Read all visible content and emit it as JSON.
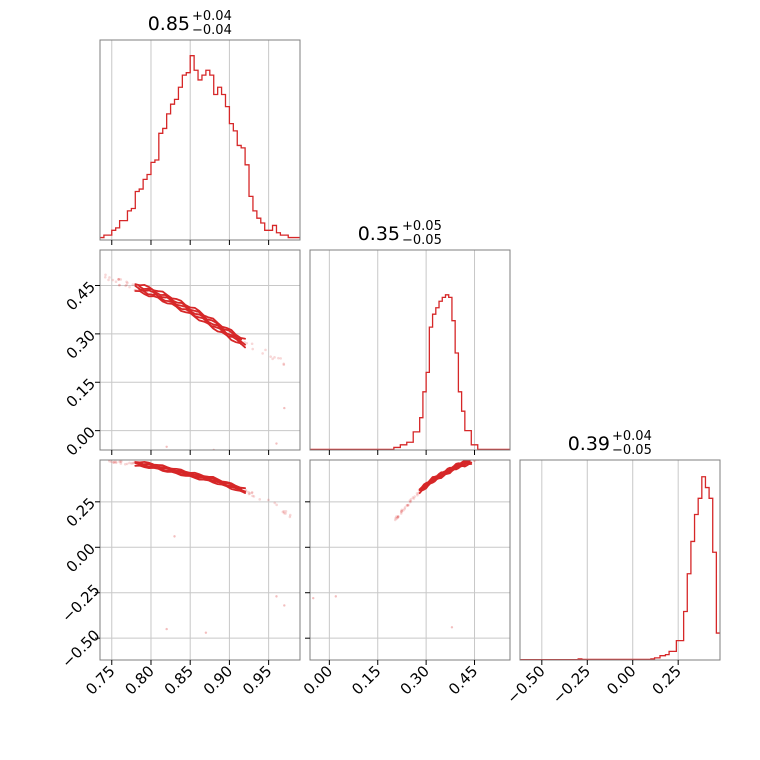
{
  "chart_data": {
    "type": "corner",
    "color": "#d62728",
    "parameters": [
      {
        "title_value": "0.85",
        "err_plus": "+0.04",
        "err_minus": "−0.04",
        "range": [
          0.735,
          0.99
        ],
        "ticks": [
          0.75,
          0.8,
          0.85,
          0.9,
          0.95
        ],
        "tick_labels": [
          "0.75",
          "0.80",
          "0.85",
          "0.90",
          "0.95"
        ],
        "hist": {
          "bins": [
            0.735,
            0.74,
            0.745,
            0.75,
            0.755,
            0.76,
            0.765,
            0.77,
            0.775,
            0.78,
            0.785,
            0.79,
            0.795,
            0.8,
            0.805,
            0.81,
            0.815,
            0.82,
            0.825,
            0.83,
            0.835,
            0.84,
            0.845,
            0.85,
            0.855,
            0.86,
            0.865,
            0.87,
            0.875,
            0.88,
            0.885,
            0.89,
            0.895,
            0.9,
            0.905,
            0.91,
            0.915,
            0.92,
            0.925,
            0.93,
            0.935,
            0.94,
            0.945,
            0.95,
            0.955,
            0.96,
            0.965,
            0.97,
            0.975,
            0.98,
            0.985,
            0.99
          ],
          "counts": [
            1,
            2,
            2,
            4,
            5,
            8,
            8,
            12,
            13,
            20,
            21,
            25,
            27,
            32,
            33,
            44,
            46,
            52,
            56,
            58,
            63,
            68,
            69,
            76,
            70,
            66,
            68,
            70,
            68,
            60,
            63,
            60,
            55,
            48,
            45,
            39,
            38,
            31,
            18,
            12,
            9,
            7,
            4,
            4,
            6,
            3,
            2,
            2,
            1,
            1,
            1
          ],
          "ymax": 80
        }
      },
      {
        "title_value": "0.35",
        "err_plus": "+0.05",
        "err_minus": "−0.05",
        "range": [
          -0.06,
          0.56
        ],
        "ticks": [
          0.0,
          0.15,
          0.3,
          0.45
        ],
        "tick_labels": [
          "0.00",
          "0.15",
          "0.30",
          "0.45"
        ],
        "hist": {
          "bins": [
            -0.06,
            0.2,
            0.22,
            0.24,
            0.26,
            0.28,
            0.29,
            0.3,
            0.31,
            0.32,
            0.33,
            0.34,
            0.35,
            0.36,
            0.37,
            0.38,
            0.39,
            0.4,
            0.41,
            0.42,
            0.44,
            0.46,
            0.56
          ],
          "counts": [
            0.5,
            2,
            4,
            6,
            14,
            25,
            45,
            60,
            95,
            105,
            110,
            115,
            118,
            120,
            118,
            100,
            75,
            45,
            30,
            15,
            4,
            0.5
          ],
          "ymax": 150
        }
      },
      {
        "title_value": "0.39",
        "err_plus": "+0.04",
        "err_minus": "−0.05",
        "range": [
          -0.62,
          0.48
        ],
        "ticks": [
          -0.5,
          -0.25,
          0.0,
          0.25
        ],
        "tick_labels": [
          "−0.50",
          "−0.25",
          "0.00",
          "0.25"
        ],
        "hist": {
          "bins": [
            -0.62,
            -0.3,
            -0.28,
            0.1,
            0.12,
            0.15,
            0.18,
            0.2,
            0.24,
            0.28,
            0.3,
            0.32,
            0.34,
            0.36,
            0.38,
            0.4,
            0.42,
            0.44,
            0.46,
            0.48
          ],
          "counts": [
            0.3,
            1,
            0.5,
            1,
            2,
            4,
            5,
            8,
            18,
            45,
            80,
            110,
            135,
            150,
            170,
            160,
            150,
            100,
            25
          ],
          "ymax": 180
        }
      }
    ],
    "pairs": [
      {
        "x_param": 0,
        "y_param": 1,
        "y_range": [
          -0.06,
          0.56
        ],
        "y_ticks": [
          0.0,
          0.15,
          0.3,
          0.45
        ],
        "y_tick_labels": [
          "0.00",
          "0.15",
          "0.30",
          "0.45"
        ],
        "ridge": [
          [
            0.74,
            0.48
          ],
          [
            0.76,
            0.46
          ],
          [
            0.78,
            0.445
          ],
          [
            0.8,
            0.43
          ],
          [
            0.82,
            0.41
          ],
          [
            0.84,
            0.385
          ],
          [
            0.86,
            0.36
          ],
          [
            0.88,
            0.33
          ],
          [
            0.9,
            0.3
          ],
          [
            0.92,
            0.27
          ],
          [
            0.94,
            0.25
          ],
          [
            0.96,
            0.22
          ],
          [
            0.98,
            0.2
          ]
        ],
        "contour_range": [
          0.78,
          0.92
        ],
        "outliers": [
          [
            0.82,
            -0.05
          ],
          [
            0.88,
            -0.06
          ],
          [
            0.96,
            -0.04
          ],
          [
            0.97,
            0.07
          ]
        ]
      },
      {
        "x_param": 0,
        "y_param": 2,
        "y_range": [
          -0.62,
          0.48
        ],
        "y_ticks": [
          -0.5,
          -0.25,
          0.0,
          0.25
        ],
        "y_tick_labels": [
          "−0.50",
          "−0.25",
          "0.00",
          "0.25"
        ],
        "ridge": [
          [
            0.745,
            0.475
          ],
          [
            0.76,
            0.47
          ],
          [
            0.78,
            0.46
          ],
          [
            0.8,
            0.45
          ],
          [
            0.82,
            0.43
          ],
          [
            0.84,
            0.41
          ],
          [
            0.86,
            0.39
          ],
          [
            0.88,
            0.37
          ],
          [
            0.9,
            0.34
          ],
          [
            0.92,
            0.31
          ],
          [
            0.94,
            0.27
          ],
          [
            0.96,
            0.23
          ],
          [
            0.98,
            0.16
          ]
        ],
        "contour_range": [
          0.78,
          0.92
        ],
        "outliers": [
          [
            0.82,
            -0.45
          ],
          [
            0.83,
            0.06
          ],
          [
            0.87,
            -0.47
          ],
          [
            0.96,
            -0.27
          ],
          [
            0.97,
            -0.32
          ]
        ]
      },
      {
        "x_param": 1,
        "y_param": 2,
        "y_range": [
          -0.62,
          0.48
        ],
        "y_ticks": [
          -0.5,
          -0.25,
          0.0,
          0.25
        ],
        "y_tick_labels": [
          "−0.50",
          "−0.25",
          "0.00",
          "0.25"
        ],
        "ridge": [
          [
            0.2,
            0.14
          ],
          [
            0.22,
            0.19
          ],
          [
            0.24,
            0.23
          ],
          [
            0.26,
            0.27
          ],
          [
            0.28,
            0.31
          ],
          [
            0.3,
            0.34
          ],
          [
            0.32,
            0.37
          ],
          [
            0.34,
            0.39
          ],
          [
            0.36,
            0.41
          ],
          [
            0.38,
            0.43
          ],
          [
            0.4,
            0.45
          ],
          [
            0.42,
            0.46
          ],
          [
            0.44,
            0.47
          ],
          [
            0.47,
            0.48
          ]
        ],
        "contour_range": [
          0.28,
          0.44
        ],
        "outliers": [
          [
            -0.05,
            -0.28
          ],
          [
            0.02,
            -0.27
          ],
          [
            0.38,
            -0.44
          ]
        ]
      }
    ]
  }
}
